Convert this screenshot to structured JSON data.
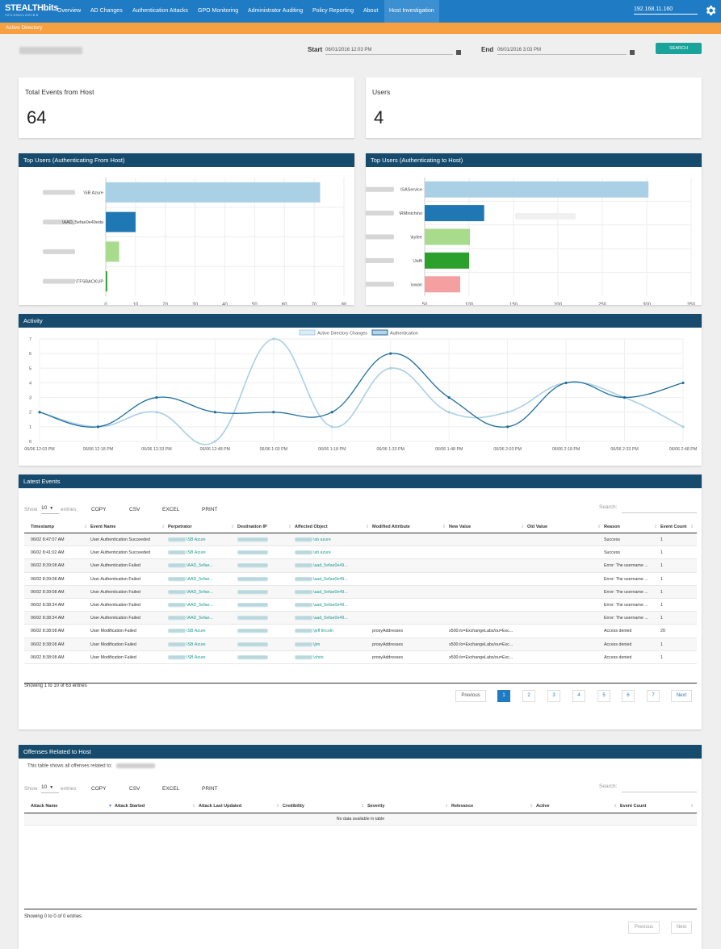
{
  "brand": {
    "line1": "STEALTHbits",
    "line2": "TECHNOLOGIES"
  },
  "nav": {
    "items": [
      "Overview",
      "AD Changes",
      "Authentication Attacks",
      "GPO Monitoring",
      "Administrator Auditing",
      "Policy Reporting",
      "About",
      "Host Investigation"
    ],
    "active": "Host Investigation",
    "ip": "192.168.11.160",
    "settings_icon": "gear-icon"
  },
  "subbar": {
    "label": "Active Directory"
  },
  "filter": {
    "start_label": "Start",
    "start_value": "06/01/2016 12:03 PM",
    "end_label": "End",
    "end_value": "06/01/2016 3:03 PM",
    "search_label": "SEARCH",
    "calendar_icon": "calendar-icon"
  },
  "stats": {
    "total_events": {
      "title": "Total Events from Host",
      "value": "64"
    },
    "users": {
      "title": "Users",
      "value": "4"
    }
  },
  "top_from": {
    "title": "Top Users (Authenticating From Host)",
    "labels": [
      "\\SB Azure",
      "\\AAD_5efae0e49eda",
      "",
      "\\TFSBACKUP"
    ],
    "x_ticks": [
      "0",
      "10",
      "20",
      "30",
      "40",
      "50",
      "60",
      "70",
      "80"
    ]
  },
  "top_to": {
    "title": "Top Users (Authenticating to Host)",
    "labels": [
      "\\SAService",
      "\\RMinichino",
      "\\kytee",
      "\\Jeffi",
      "\\swan"
    ],
    "x_ticks": [
      "50",
      "100",
      "150",
      "200",
      "250",
      "300",
      "350"
    ]
  },
  "activity": {
    "title": "Activity",
    "legend": [
      "Active Directory Changes",
      "Authentication"
    ],
    "y_ticks": [
      "0",
      "1",
      "2",
      "3",
      "4",
      "5",
      "6",
      "7"
    ],
    "x_ticks": [
      "06/06 12:03 PM",
      "06/06 12:18 PM",
      "06/06 12:33 PM",
      "06/06 12:48 PM",
      "06/06 1:03 PM",
      "06/06 1:18 PM",
      "06/06 1:33 PM",
      "06/06 1:48 PM",
      "06/06 2:03 PM",
      "06/06 2:18 PM",
      "06/06 2:33 PM",
      "06/06 2:48 PM"
    ]
  },
  "latest": {
    "title": "Latest Events",
    "show": "Show",
    "per_page": "10",
    "entries": "entries",
    "buttons": [
      "COPY",
      "CSV",
      "EXCEL",
      "PRINT"
    ],
    "search": "Search:",
    "columns": [
      "Timestamp",
      "Event Name",
      "Perpetrator",
      "Destination IP",
      "Affected Object",
      "Modified Attribute",
      "New Value",
      "Old Value",
      "Reason",
      "Event Count"
    ],
    "rows": [
      [
        "06/02 8:47:07 AM",
        "User Authentication Succeeded",
        "\\SB Azure",
        "",
        "\\sb azure",
        "",
        "",
        "",
        "Success",
        "1"
      ],
      [
        "06/02 8:41:02 AM",
        "User Authentication Succeeded",
        "\\SB Azure",
        "",
        "\\sb azure",
        "",
        "",
        "",
        "Success",
        "1"
      ],
      [
        "06/02 8:39:08 AM",
        "User Authentication Failed",
        "\\AAD_5efae...",
        "",
        "\\aad_5efae0e49...",
        "",
        "",
        "",
        "Error: The username ...",
        "1"
      ],
      [
        "06/02 8:39:08 AM",
        "User Authentication Failed",
        "\\AAD_5efae...",
        "",
        "\\aad_5efae0e49...",
        "",
        "",
        "",
        "Error: The username ...",
        "1"
      ],
      [
        "06/02 8:39:08 AM",
        "User Authentication Failed",
        "\\AAD_5efae...",
        "",
        "\\aad_5efae0e49...",
        "",
        "",
        "",
        "Error: The username ...",
        "1"
      ],
      [
        "06/02 8:38:34 AM",
        "User Authentication Failed",
        "\\AAD_5efae...",
        "",
        "\\aad_5efae0e49...",
        "",
        "",
        "",
        "Error: The username ...",
        "1"
      ],
      [
        "06/02 8:38:34 AM",
        "User Authentication Failed",
        "\\AAD_5efae...",
        "",
        "\\aad_5efae0e49...",
        "",
        "",
        "",
        "Error: The username ...",
        "1"
      ],
      [
        "06/02 8:38:08 AM",
        "User Modification Failed",
        "\\SB Azure",
        "",
        "\\jeff lincoln",
        "proxyAddresses",
        "x500:/o=ExchangeLabs/ou=Exc...",
        "",
        "Access denied",
        "20"
      ],
      [
        "06/02 8:38:08 AM",
        "User Modification Failed",
        "\\SB Azure",
        "",
        "\\jim",
        "proxyAddresses",
        "x500:/o=ExchangeLabs/ou=Exc...",
        "",
        "Access denied",
        "1"
      ],
      [
        "06/02 8:38:08 AM",
        "User Modification Failed",
        "\\SB Azure",
        "",
        "\\chris",
        "proxyAddresses",
        "x500:/o=ExchangeLabs/ou=Exc...",
        "",
        "Access denied",
        "1"
      ]
    ],
    "info": "Showing 1 to 10 of 63 entries",
    "pagination": [
      "Previous",
      "1",
      "2",
      "3",
      "4",
      "5",
      "6",
      "7",
      "Next"
    ]
  },
  "offenses": {
    "title": "Offenses Related to Host",
    "description": "This table shows all offenses related to:",
    "show": "Show",
    "per_page": "10",
    "entries": "entries",
    "buttons": [
      "COPY",
      "CSV",
      "EXCEL",
      "PRINT"
    ],
    "search": "Search:",
    "columns": [
      "Attack Name",
      "Attack Started",
      "Attack Last Updated",
      "Credibility",
      "Severity",
      "Relevance",
      "Active",
      "Event Count"
    ],
    "empty": "No data available in table",
    "info": "Showing 0 to 0 of 0 entries",
    "pagination": [
      "Previous",
      "Next"
    ]
  },
  "chart_data": [
    {
      "type": "bar",
      "title": "Top Users (Authenticating From Host)",
      "orientation": "horizontal",
      "categories": [
        "\\SB Azure",
        "\\AAD_5efae0e49eda",
        "",
        "\\TFSBACKUP"
      ],
      "values": [
        72,
        10,
        4.5,
        0.5
      ],
      "colors": [
        "#a9d0e4",
        "#1f77b4",
        "#a8dc8c",
        "#2ca02c"
      ],
      "xlim": [
        0,
        80
      ]
    },
    {
      "type": "bar",
      "title": "Top Users (Authenticating to Host)",
      "orientation": "horizontal",
      "categories": [
        "\\SAService",
        "\\RMinichino",
        "\\kytee",
        "\\Jeffi",
        "\\swan"
      ],
      "values": [
        302,
        117,
        101,
        100,
        90
      ],
      "colors": [
        "#a9d0e4",
        "#1f77b4",
        "#a8dc8c",
        "#2ca02c",
        "#f4a0a0"
      ],
      "xlim": [
        50,
        350
      ]
    },
    {
      "type": "line",
      "title": "Activity",
      "x": [
        "06/06 12:03 PM",
        "06/06 12:18 PM",
        "06/06 12:33 PM",
        "06/06 12:48 PM",
        "06/06 1:03 PM",
        "06/06 1:18 PM",
        "06/06 1:33 PM",
        "06/06 1:48 PM",
        "06/06 2:03 PM",
        "06/06 2:18 PM",
        "06/06 2:33 PM",
        "06/06 2:48 PM"
      ],
      "series": [
        {
          "name": "Active Directory Changes",
          "color": "#a9d0e4",
          "values": [
            2,
            1,
            2,
            0,
            7,
            1,
            5,
            2,
            2,
            4,
            3,
            1
          ]
        },
        {
          "name": "Authentication",
          "color": "#1f6e9e",
          "values": [
            2,
            1,
            3,
            2,
            2,
            2,
            6,
            3,
            1,
            4,
            3,
            4
          ]
        }
      ],
      "ylim": [
        0,
        7
      ]
    }
  ]
}
